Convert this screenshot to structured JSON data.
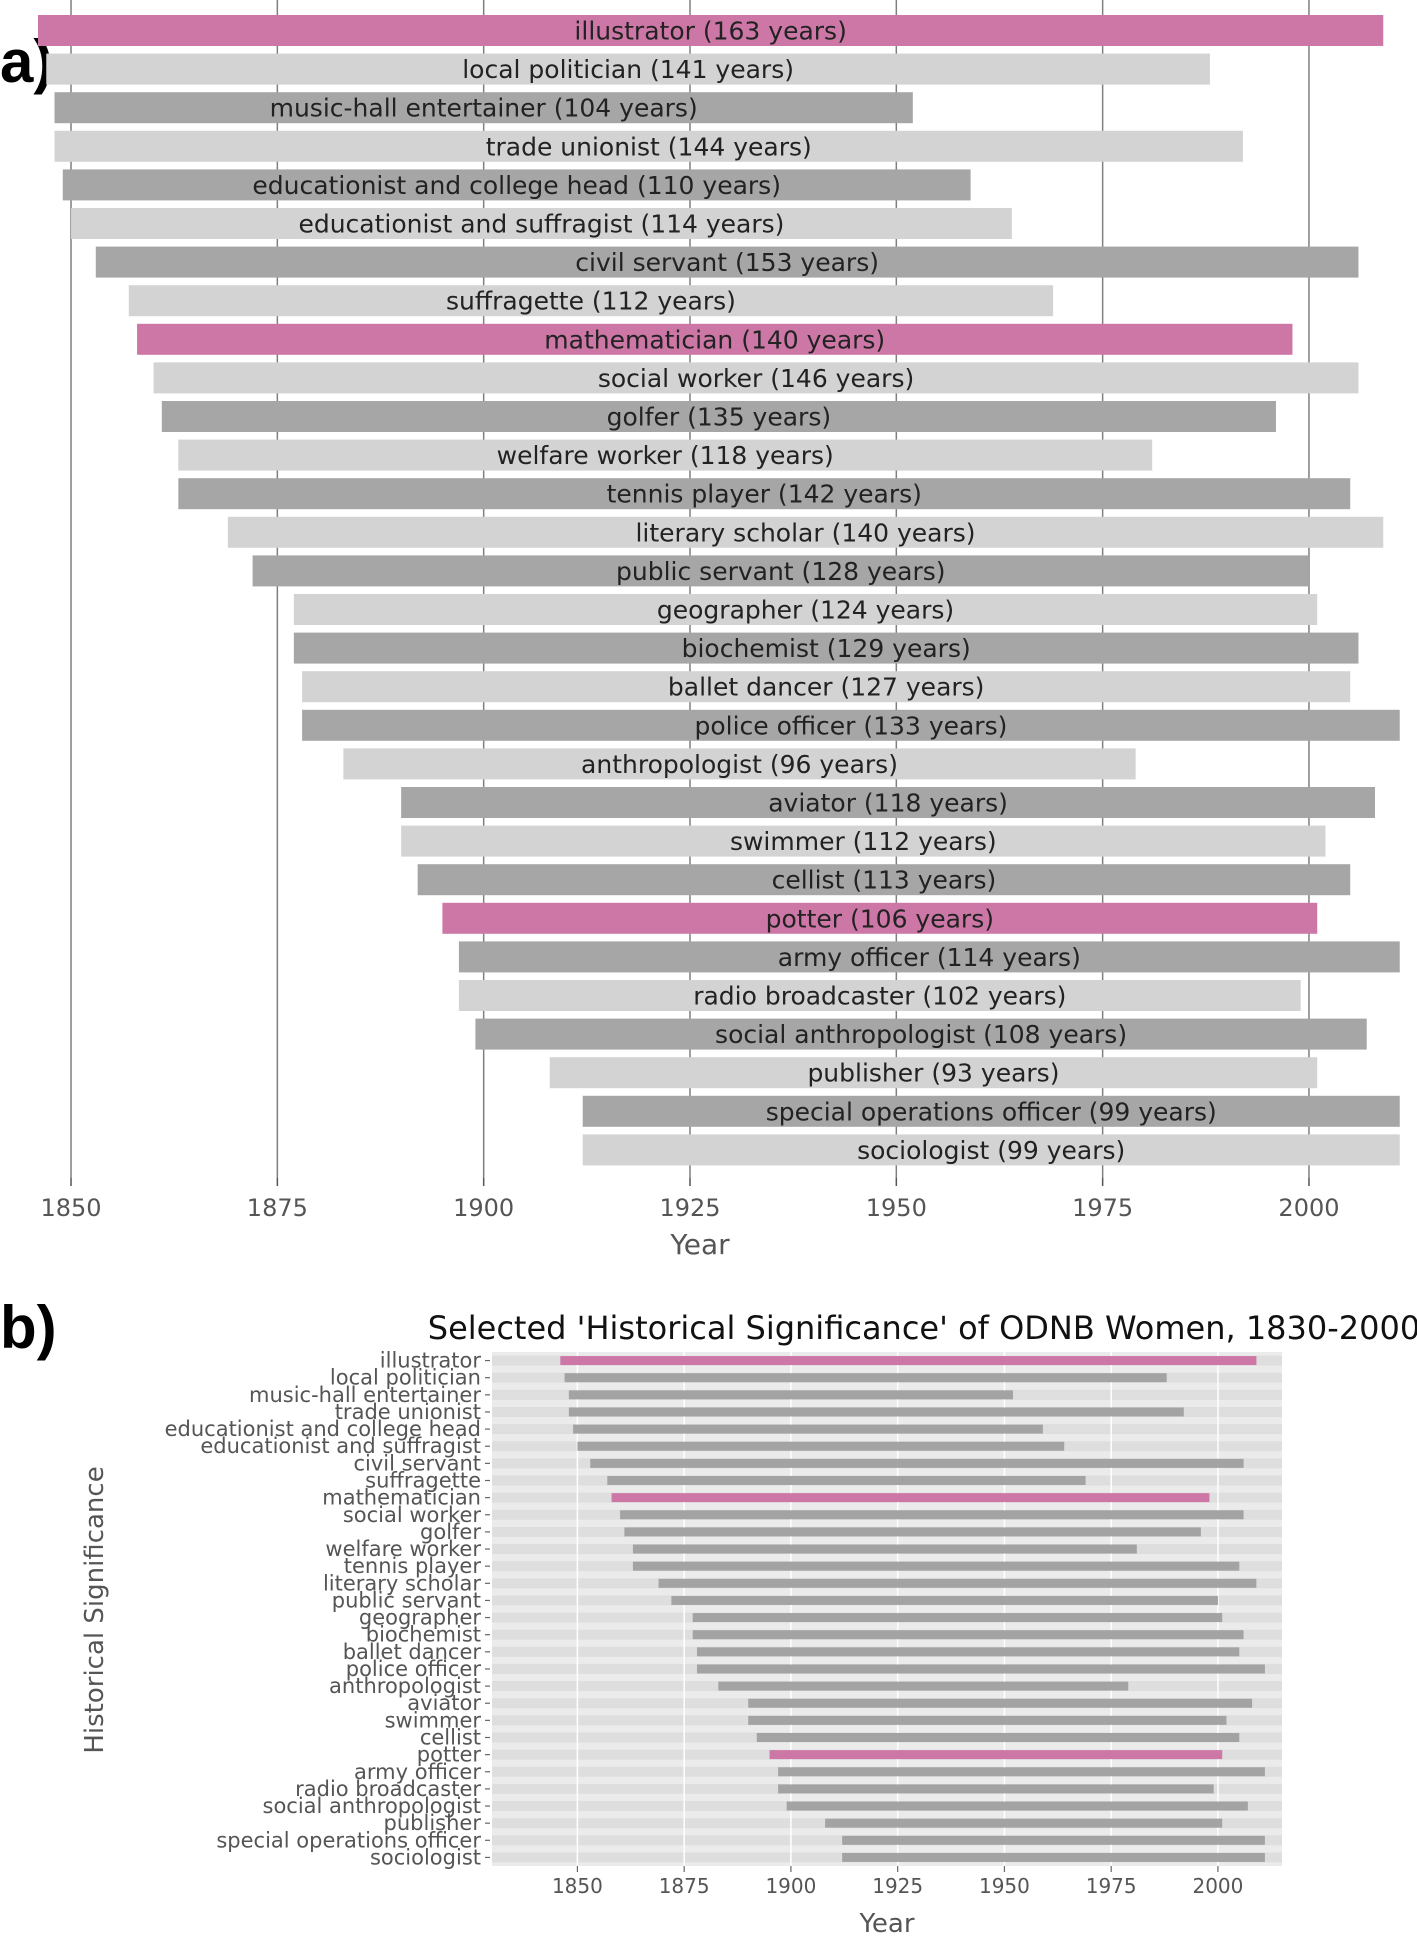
{
  "panel_a": {
    "letter": "a)"
  },
  "panel_b": {
    "letter": "b)"
  },
  "colors": {
    "highlight": "#cc77a6",
    "dark": "#a6a6a6",
    "light": "#d3d3d3",
    "b_segment": "#a3a3a3",
    "b_band": "#dedede",
    "b_plot_bg": "#ebebeb",
    "gridline": "#7f7f7f"
  },
  "chart_data": [
    {
      "type": "bar",
      "orientation": "horizontal-range",
      "title": "",
      "xlabel": "Year",
      "ylabel": "",
      "xlim": [
        1842,
        2012
      ],
      "xticks": [
        1850,
        1875,
        1900,
        1925,
        1950,
        1975,
        2000
      ],
      "grid": "vertical",
      "categories": [
        "illustrator",
        "local politician",
        "music-hall entertainer",
        "trade unionist",
        "educationist and college head",
        "educationist and suffragist",
        "civil servant",
        "suffragette",
        "mathematician",
        "social worker",
        "golfer",
        "welfare worker",
        "tennis player",
        "literary scholar",
        "public servant",
        "geographer",
        "biochemist",
        "ballet dancer",
        "police officer",
        "anthropologist",
        "aviator",
        "swimmer",
        "cellist",
        "potter",
        "army officer",
        "radio broadcaster",
        "social anthropologist",
        "publisher",
        "special operations officer",
        "sociologist"
      ],
      "labels": [
        "illustrator (163 years)",
        "local politician (141 years)",
        "music-hall entertainer (104 years)",
        "trade unionist (144 years)",
        "educationist and college head (110 years)",
        "educationist and suffragist (114 years)",
        "civil servant (153 years)",
        "suffragette (112 years)",
        "mathematician (140 years)",
        "social worker (146 years)",
        "golfer (135 years)",
        "welfare worker (118 years)",
        "tennis player (142 years)",
        "literary scholar (140 years)",
        "public servant (128 years)",
        "geographer (124 years)",
        "biochemist (129 years)",
        "ballet dancer (127 years)",
        "police officer (133 years)",
        "anthropologist (96 years)",
        "aviator (118 years)",
        "swimmer (112 years)",
        "cellist (113 years)",
        "potter (106 years)",
        "army officer (114 years)",
        "radio broadcaster (102 years)",
        "social anthropologist (108 years)",
        "publisher (93 years)",
        "special operations officer (99 years)",
        "sociologist (99 years)"
      ],
      "start": [
        1846,
        1847,
        1848,
        1848,
        1849,
        1850,
        1853,
        1857,
        1858,
        1860,
        1861,
        1863,
        1863,
        1869,
        1872,
        1877,
        1877,
        1878,
        1878,
        1883,
        1890,
        1890,
        1892,
        1895,
        1897,
        1897,
        1899,
        1908,
        1912,
        1912
      ],
      "end": [
        2009,
        1988,
        1952,
        1992,
        1959,
        1964,
        2006,
        1969,
        1998,
        2006,
        1996,
        1981,
        2005,
        2009,
        2000,
        2001,
        2006,
        2005,
        2011,
        1979,
        2008,
        2002,
        2005,
        2001,
        2011,
        1999,
        2007,
        2001,
        2011,
        2011
      ],
      "highlighted": [
        "illustrator",
        "mathematician",
        "potter"
      ]
    },
    {
      "type": "bar",
      "orientation": "horizontal-range",
      "title": "Selected 'Historical Significance' of ODNB Women, 1830-2000",
      "xlabel": "Year",
      "ylabel": "Historical Significance",
      "xlim": [
        1830,
        2015
      ],
      "xticks": [
        1850,
        1875,
        1900,
        1925,
        1950,
        1975,
        2000
      ],
      "grid": "vertical",
      "categories": [
        "illustrator",
        "local politician",
        "music-hall entertainer",
        "trade unionist",
        "educationist and college head",
        "educationist and suffragist",
        "civil servant",
        "suffragette",
        "mathematician",
        "social worker",
        "golfer",
        "welfare worker",
        "tennis player",
        "literary scholar",
        "public servant",
        "geographer",
        "biochemist",
        "ballet dancer",
        "police officer",
        "anthropologist",
        "aviator",
        "swimmer",
        "cellist",
        "potter",
        "army officer",
        "radio broadcaster",
        "social anthropologist",
        "publisher",
        "special operations officer",
        "sociologist"
      ],
      "start": [
        1846,
        1847,
        1848,
        1848,
        1849,
        1850,
        1853,
        1857,
        1858,
        1860,
        1861,
        1863,
        1863,
        1869,
        1872,
        1877,
        1877,
        1878,
        1878,
        1883,
        1890,
        1890,
        1892,
        1895,
        1897,
        1897,
        1899,
        1908,
        1912,
        1912
      ],
      "end": [
        2009,
        1988,
        1952,
        1992,
        1959,
        1964,
        2006,
        1969,
        1998,
        2006,
        1996,
        1981,
        2005,
        2009,
        2000,
        2001,
        2006,
        2005,
        2011,
        1979,
        2008,
        2002,
        2005,
        2001,
        2011,
        1999,
        2007,
        2001,
        2011,
        2011
      ],
      "highlighted": [
        "illustrator",
        "mathematician",
        "potter"
      ]
    }
  ]
}
